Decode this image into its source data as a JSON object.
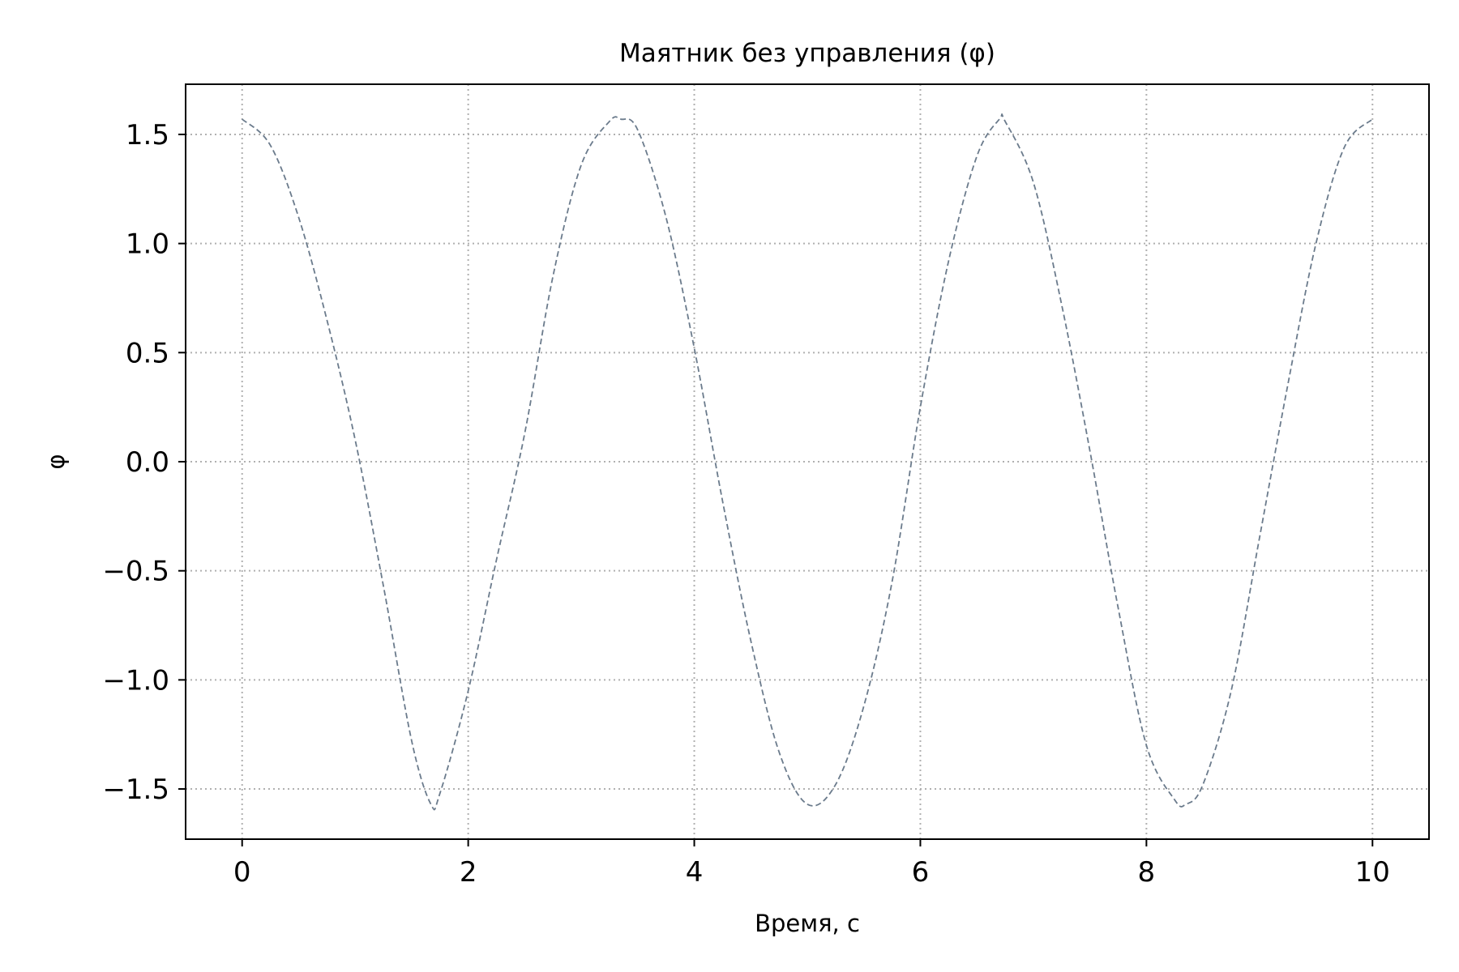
{
  "chart_data": {
    "type": "line",
    "title": "Маятник без управления (φ)",
    "xlabel": "Время, с",
    "ylabel": "φ",
    "xlim": [
      -0.5,
      10.5
    ],
    "ylim": [
      -1.73,
      1.73
    ],
    "grid": true,
    "x_ticks": [
      0,
      2,
      4,
      6,
      8,
      10
    ],
    "y_ticks": [
      -1.5,
      -1.0,
      -0.5,
      0.0,
      0.5,
      1.0,
      1.5
    ],
    "x_tick_labels": [
      "0",
      "2",
      "4",
      "6",
      "8",
      "10"
    ],
    "y_tick_labels": [
      "−1.5",
      "−1.0",
      "−0.5",
      "0.0",
      "0.5",
      "1.0",
      "1.5"
    ],
    "series": [
      {
        "color": "#6b7b8c",
        "line_style": "dashed",
        "x": [
          0,
          0.25,
          0.5,
          0.75,
          1.0,
          1.25,
          1.5,
          1.67,
          1.75,
          2.0,
          2.25,
          2.5,
          2.75,
          3.0,
          3.25,
          3.35,
          3.5,
          3.75,
          4.0,
          4.25,
          4.5,
          4.75,
          5.0,
          5.25,
          5.5,
          5.75,
          6.0,
          6.25,
          6.5,
          6.7,
          6.75,
          7.0,
          7.25,
          7.5,
          7.75,
          8.0,
          8.25,
          8.35,
          8.5,
          8.75,
          9.0,
          9.25,
          9.5,
          9.75,
          10.0
        ],
        "y": [
          1.57,
          1.45,
          1.12,
          0.65,
          0.1,
          -0.57,
          -1.28,
          -1.57,
          -1.52,
          -1.05,
          -0.45,
          0.13,
          0.85,
          1.36,
          1.56,
          1.57,
          1.52,
          1.12,
          0.52,
          -0.18,
          -0.82,
          -1.33,
          -1.57,
          -1.48,
          -1.12,
          -0.55,
          0.25,
          0.92,
          1.4,
          1.57,
          1.56,
          1.28,
          0.72,
          0.05,
          -0.67,
          -1.3,
          -1.55,
          -1.57,
          -1.48,
          -1.05,
          -0.35,
          0.35,
          1.0,
          1.44,
          1.57
        ]
      }
    ]
  }
}
